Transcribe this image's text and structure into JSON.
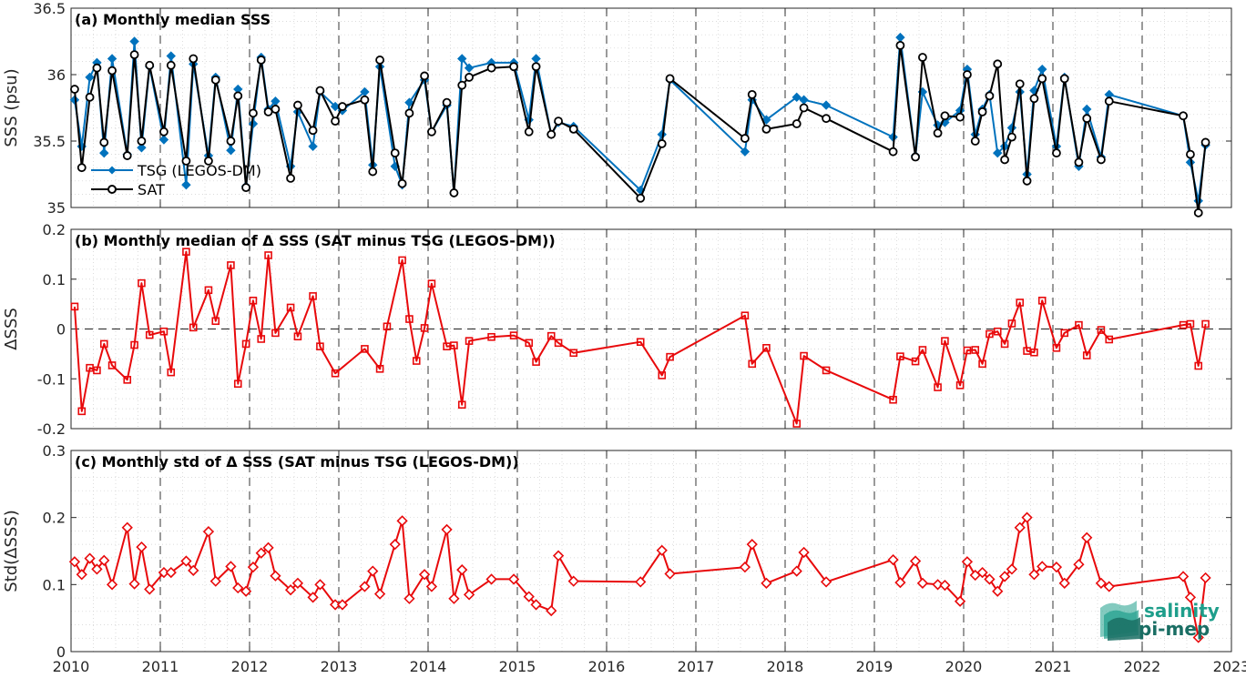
{
  "colors": {
    "tsg": "#0072BD",
    "sat": "#000000",
    "diff": "#E8090B",
    "logo_primary": "#1E9E8B",
    "logo_secondary": "#1A6E64"
  },
  "logo": {
    "line1": "salinity",
    "line2": "pi-mep"
  },
  "x_axis": {
    "type": "time",
    "range": [
      2010.0,
      2023.0
    ],
    "ticks": [
      2010,
      2011,
      2012,
      2013,
      2014,
      2015,
      2016,
      2017,
      2018,
      2019,
      2020,
      2021,
      2022,
      2023
    ],
    "tick_labels": [
      "2010",
      "2011",
      "2012",
      "2013",
      "2014",
      "2015",
      "2016",
      "2017",
      "2018",
      "2019",
      "2020",
      "2021",
      "2022",
      "2023"
    ]
  },
  "chart_data": [
    {
      "type": "line",
      "title": "(a) Monthly median SSS",
      "ylabel": "SSS (psu)",
      "ylim": [
        35.0,
        36.5
      ],
      "yticks": [
        35,
        35.5,
        36,
        36.5
      ],
      "ytick_labels": [
        "35",
        "35.5",
        "36",
        "36.5"
      ],
      "grid": true,
      "legend": {
        "placement": "left-middle",
        "entries": [
          "TSG (LEGOS-DM)",
          "SAT"
        ]
      },
      "series": [
        {
          "name": "TSG (LEGOS-DM)",
          "marker": "diamond",
          "x": [
            2010.04,
            2010.12,
            2010.21,
            2010.29,
            2010.37,
            2010.46,
            2010.63,
            2010.71,
            2010.79,
            2010.88,
            2011.04,
            2011.12,
            2011.29,
            2011.37,
            2011.54,
            2011.62,
            2011.79,
            2011.87,
            2011.96,
            2012.04,
            2012.13,
            2012.21,
            2012.29,
            2012.46,
            2012.54,
            2012.71,
            2012.79,
            2012.96,
            2013.04,
            2013.29,
            2013.38,
            2013.46,
            2013.63,
            2013.71,
            2013.79,
            2013.96,
            2014.04,
            2014.21,
            2014.29,
            2014.38,
            2014.46,
            2014.71,
            2014.96,
            2015.13,
            2015.21,
            2015.38,
            2015.46,
            2015.63,
            2016.38,
            2016.62,
            2016.71,
            2017.55,
            2017.63,
            2017.79,
            2018.13,
            2018.21,
            2018.46,
            2019.21,
            2019.29,
            2019.46,
            2019.54,
            2019.71,
            2019.79,
            2019.96,
            2020.04,
            2020.13,
            2020.21,
            2020.29,
            2020.38,
            2020.46,
            2020.54,
            2020.63,
            2020.71,
            2020.79,
            2020.88,
            2021.04,
            2021.13,
            2021.29,
            2021.38,
            2021.54,
            2021.63,
            2022.46,
            2022.54,
            2022.63,
            2022.71
          ],
          "y": [
            35.81,
            35.46,
            35.98,
            36.09,
            35.41,
            36.12,
            35.4,
            36.25,
            35.45,
            36.06,
            35.51,
            36.14,
            35.17,
            36.08,
            35.39,
            35.98,
            35.43,
            35.89,
            35.16,
            35.63,
            36.13,
            35.74,
            35.8,
            35.31,
            35.72,
            35.46,
            35.87,
            35.76,
            35.73,
            35.87,
            35.32,
            36.06,
            35.31,
            35.17,
            35.79,
            35.96,
            35.57,
            35.77,
            35.11,
            36.12,
            36.05,
            36.09,
            36.09,
            35.66,
            36.12,
            35.55,
            35.64,
            35.61,
            35.13,
            35.55,
            35.96,
            35.42,
            35.81,
            35.66,
            35.83,
            35.81,
            35.77,
            35.53,
            36.28,
            35.39,
            35.87,
            35.62,
            35.64,
            35.73,
            36.04,
            35.55,
            35.74,
            35.85,
            35.41,
            35.46,
            35.6,
            35.87,
            35.25,
            35.88,
            36.04,
            35.46,
            35.98,
            35.31,
            35.74,
            35.38,
            35.85,
            35.69,
            35.34,
            35.05,
            35.47
          ]
        },
        {
          "name": "SAT",
          "marker": "circle",
          "x": [
            2010.04,
            2010.12,
            2010.21,
            2010.29,
            2010.37,
            2010.46,
            2010.63,
            2010.71,
            2010.79,
            2010.88,
            2011.04,
            2011.12,
            2011.29,
            2011.37,
            2011.54,
            2011.62,
            2011.79,
            2011.87,
            2011.96,
            2012.04,
            2012.13,
            2012.21,
            2012.29,
            2012.46,
            2012.54,
            2012.71,
            2012.79,
            2012.96,
            2013.04,
            2013.29,
            2013.38,
            2013.46,
            2013.63,
            2013.71,
            2013.79,
            2013.96,
            2014.04,
            2014.21,
            2014.29,
            2014.38,
            2014.46,
            2014.71,
            2014.96,
            2015.13,
            2015.21,
            2015.38,
            2015.46,
            2015.63,
            2016.38,
            2016.62,
            2016.71,
            2017.55,
            2017.63,
            2017.79,
            2018.13,
            2018.21,
            2018.46,
            2019.21,
            2019.29,
            2019.46,
            2019.54,
            2019.71,
            2019.79,
            2019.96,
            2020.04,
            2020.13,
            2020.21,
            2020.29,
            2020.38,
            2020.46,
            2020.54,
            2020.63,
            2020.71,
            2020.79,
            2020.88,
            2021.04,
            2021.13,
            2021.29,
            2021.38,
            2021.54,
            2021.63,
            2022.46,
            2022.54,
            2022.63,
            2022.71
          ],
          "y": [
            35.89,
            35.3,
            35.83,
            36.05,
            35.49,
            36.03,
            35.39,
            36.15,
            35.5,
            36.07,
            35.57,
            36.07,
            35.35,
            36.12,
            35.35,
            35.96,
            35.5,
            35.84,
            35.15,
            35.71,
            36.11,
            35.72,
            35.74,
            35.22,
            35.77,
            35.58,
            35.88,
            35.65,
            35.76,
            35.81,
            35.27,
            36.11,
            35.41,
            35.18,
            35.71,
            35.99,
            35.57,
            35.79,
            35.11,
            35.92,
            35.98,
            36.05,
            36.06,
            35.57,
            36.06,
            35.55,
            35.65,
            35.59,
            35.07,
            35.48,
            35.97,
            35.52,
            35.85,
            35.59,
            35.63,
            35.75,
            35.67,
            35.42,
            36.22,
            35.38,
            36.13,
            35.56,
            35.69,
            35.68,
            36.0,
            35.5,
            35.72,
            35.84,
            36.08,
            35.36,
            35.53,
            35.93,
            35.2,
            35.82,
            35.97,
            35.41,
            35.97,
            35.34,
            35.67,
            35.36,
            35.8,
            35.69,
            35.4,
            34.96,
            35.49
          ]
        }
      ]
    },
    {
      "type": "line",
      "title": "(b) Monthly median of Δ SSS (SAT minus TSG (LEGOS-DM))",
      "ylabel": "ΔSSS",
      "ylim": [
        -0.2,
        0.2
      ],
      "yticks": [
        -0.2,
        -0.1,
        0,
        0.1,
        0.2
      ],
      "ytick_labels": [
        "-0.2",
        "-0.1",
        "0",
        "0.1",
        "0.2"
      ],
      "grid": true,
      "zero_line": true,
      "series": [
        {
          "name": "",
          "marker": "square",
          "x": [
            2010.04,
            2010.12,
            2010.21,
            2010.29,
            2010.37,
            2010.46,
            2010.63,
            2010.71,
            2010.79,
            2010.88,
            2011.04,
            2011.12,
            2011.29,
            2011.37,
            2011.54,
            2011.62,
            2011.79,
            2011.87,
            2011.96,
            2012.04,
            2012.13,
            2012.21,
            2012.29,
            2012.46,
            2012.54,
            2012.71,
            2012.79,
            2012.96,
            2013.29,
            2013.46,
            2013.54,
            2013.71,
            2013.79,
            2013.87,
            2013.96,
            2014.04,
            2014.21,
            2014.29,
            2014.38,
            2014.46,
            2014.71,
            2014.96,
            2015.13,
            2015.21,
            2015.38,
            2015.46,
            2015.63,
            2016.38,
            2016.62,
            2016.71,
            2017.55,
            2017.63,
            2017.79,
            2018.13,
            2018.21,
            2018.46,
            2019.21,
            2019.29,
            2019.46,
            2019.54,
            2019.71,
            2019.79,
            2019.96,
            2020.04,
            2020.13,
            2020.21,
            2020.29,
            2020.38,
            2020.46,
            2020.54,
            2020.63,
            2020.71,
            2020.79,
            2020.88,
            2021.04,
            2021.13,
            2021.29,
            2021.38,
            2021.54,
            2021.63,
            2022.46,
            2022.54,
            2022.63,
            2022.71
          ],
          "y": [
            0.045,
            -0.165,
            -0.078,
            -0.083,
            -0.03,
            -0.073,
            -0.102,
            -0.032,
            0.092,
            -0.012,
            -0.005,
            -0.087,
            0.155,
            0.003,
            0.078,
            0.016,
            0.128,
            -0.11,
            -0.03,
            0.057,
            -0.02,
            0.148,
            -0.008,
            0.043,
            -0.015,
            0.066,
            -0.035,
            -0.089,
            -0.04,
            -0.08,
            0.005,
            0.138,
            0.02,
            -0.064,
            0.002,
            0.091,
            -0.035,
            -0.033,
            -0.152,
            -0.024,
            -0.016,
            -0.013,
            -0.028,
            -0.066,
            -0.014,
            -0.028,
            -0.048,
            -0.026,
            -0.093,
            -0.056,
            0.027,
            -0.07,
            -0.038,
            -0.19,
            -0.054,
            -0.083,
            -0.142,
            -0.055,
            -0.065,
            -0.042,
            -0.117,
            -0.024,
            -0.113,
            -0.043,
            -0.042,
            -0.07,
            -0.01,
            -0.005,
            -0.03,
            0.011,
            0.053,
            -0.044,
            -0.047,
            0.057,
            -0.038,
            -0.008,
            0.008,
            -0.053,
            -0.002,
            -0.021,
            0.008,
            0.01,
            -0.074,
            0.01
          ]
        }
      ]
    },
    {
      "type": "line",
      "title": "(c) Monthly std of Δ SSS (SAT minus TSG (LEGOS-DM))",
      "ylabel": "Std(ΔSSS)",
      "ylim": [
        0,
        0.3
      ],
      "yticks": [
        0,
        0.1,
        0.2,
        0.3
      ],
      "ytick_labels": [
        "0",
        "0.1",
        "0.2",
        "0.3"
      ],
      "grid": true,
      "series": [
        {
          "name": "",
          "marker": "diamond",
          "x": [
            2010.04,
            2010.12,
            2010.21,
            2010.29,
            2010.37,
            2010.46,
            2010.63,
            2010.71,
            2010.79,
            2010.88,
            2011.04,
            2011.12,
            2011.29,
            2011.37,
            2011.54,
            2011.62,
            2011.79,
            2011.87,
            2011.96,
            2012.04,
            2012.13,
            2012.21,
            2012.29,
            2012.46,
            2012.54,
            2012.71,
            2012.79,
            2012.96,
            2013.04,
            2013.29,
            2013.38,
            2013.46,
            2013.63,
            2013.71,
            2013.79,
            2013.96,
            2014.04,
            2014.21,
            2014.29,
            2014.38,
            2014.46,
            2014.71,
            2014.96,
            2015.13,
            2015.21,
            2015.38,
            2015.46,
            2015.63,
            2016.38,
            2016.62,
            2016.71,
            2017.55,
            2017.63,
            2017.79,
            2018.13,
            2018.21,
            2018.46,
            2019.21,
            2019.29,
            2019.46,
            2019.54,
            2019.71,
            2019.79,
            2019.96,
            2020.04,
            2020.13,
            2020.21,
            2020.29,
            2020.38,
            2020.46,
            2020.54,
            2020.63,
            2020.71,
            2020.79,
            2020.88,
            2021.04,
            2021.13,
            2021.29,
            2021.38,
            2021.54,
            2021.63,
            2022.46,
            2022.54,
            2022.63,
            2022.71
          ],
          "y": [
            0.134,
            0.115,
            0.139,
            0.123,
            0.136,
            0.1,
            0.185,
            0.101,
            0.156,
            0.093,
            0.118,
            0.118,
            0.135,
            0.121,
            0.179,
            0.105,
            0.127,
            0.095,
            0.09,
            0.126,
            0.147,
            0.155,
            0.113,
            0.092,
            0.102,
            0.081,
            0.1,
            0.07,
            0.07,
            0.097,
            0.12,
            0.086,
            0.16,
            0.195,
            0.079,
            0.115,
            0.097,
            0.182,
            0.079,
            0.122,
            0.085,
            0.108,
            0.108,
            0.082,
            0.07,
            0.061,
            0.143,
            0.105,
            0.104,
            0.151,
            0.116,
            0.126,
            0.16,
            0.102,
            0.12,
            0.148,
            0.104,
            0.137,
            0.103,
            0.135,
            0.102,
            0.1,
            0.099,
            0.075,
            0.134,
            0.114,
            0.118,
            0.108,
            0.09,
            0.112,
            0.123,
            0.185,
            0.2,
            0.115,
            0.127,
            0.126,
            0.102,
            0.13,
            0.17,
            0.102,
            0.097,
            0.112,
            0.081,
            0.021,
            0.11
          ]
        }
      ]
    }
  ]
}
